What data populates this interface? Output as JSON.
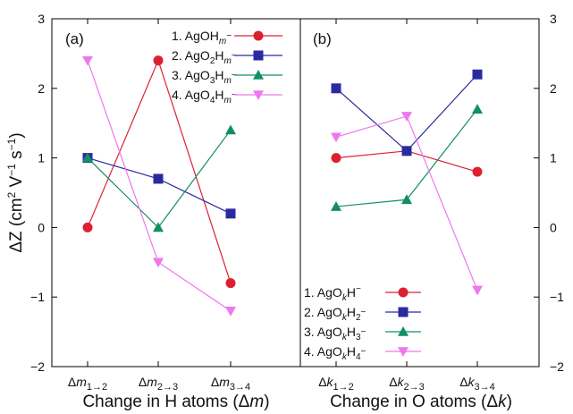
{
  "chart_data": [
    {
      "type": "line",
      "panel_label": "(a)",
      "categories": [
        "Δm1→2",
        "Δm2→3",
        "Δm3→4"
      ],
      "category_parts": [
        {
          "main": "Δm",
          "sub": "1→2"
        },
        {
          "main": "Δm",
          "sub": "2→3"
        },
        {
          "main": "Δm",
          "sub": "3→4"
        }
      ],
      "xlabel": "Change in H atoms (Δm)",
      "ylabel": "ΔZ (cm² V⁻¹ s⁻¹)",
      "ylim": [
        -2,
        3
      ],
      "yticks": [
        -2,
        -1,
        0,
        1,
        2,
        3
      ],
      "legend_position": "top-right",
      "series": [
        {
          "name": "1. AgOHm−",
          "label_parts": [
            "1. AgOH",
            "m",
            "−"
          ],
          "color": "#dd2030",
          "marker": "circle",
          "values": [
            0,
            2.4,
            -0.8
          ]
        },
        {
          "name": "2. AgO2Hm−",
          "label_parts": [
            "2. AgO",
            "2",
            "H",
            "m",
            "−"
          ],
          "color": "#2a2aa0",
          "marker": "square",
          "values": [
            1.0,
            0.7,
            0.2
          ]
        },
        {
          "name": "3. AgO3Hm−",
          "label_parts": [
            "3. AgO",
            "3",
            "H",
            "m",
            "−"
          ],
          "color": "#119060",
          "marker": "triangle-up",
          "values": [
            1.0,
            0.0,
            1.4
          ]
        },
        {
          "name": "4. AgO4Hm−",
          "label_parts": [
            "4. AgO",
            "4",
            "H",
            "m",
            "−"
          ],
          "color": "#ee77ee",
          "marker": "triangle-down",
          "values": [
            2.4,
            -0.5,
            -1.2
          ]
        }
      ]
    },
    {
      "type": "line",
      "panel_label": "(b)",
      "categories": [
        "Δk1→2",
        "Δk2→3",
        "Δk3→4"
      ],
      "category_parts": [
        {
          "main": "Δk",
          "sub": "1→2"
        },
        {
          "main": "Δk",
          "sub": "2→3"
        },
        {
          "main": "Δk",
          "sub": "3→4"
        }
      ],
      "xlabel": "Change in O atoms (Δk)",
      "ylim": [
        -2,
        3
      ],
      "yticks": [
        -2,
        -1,
        0,
        1,
        2,
        3
      ],
      "legend_position": "bottom-left",
      "series": [
        {
          "name": "1. AgOkH−",
          "label_parts": [
            "1. AgO",
            "k",
            "H",
            "−"
          ],
          "color": "#dd2030",
          "marker": "circle",
          "values": [
            1.0,
            1.1,
            0.8
          ]
        },
        {
          "name": "2. AgOkH2−",
          "label_parts": [
            "2. AgO",
            "k",
            "H",
            "2",
            "−"
          ],
          "color": "#2a2aa0",
          "marker": "square",
          "values": [
            2.0,
            1.1,
            2.2
          ]
        },
        {
          "name": "3. AgOkH3−",
          "label_parts": [
            "3. AgO",
            "k",
            "H",
            "3",
            "−"
          ],
          "color": "#119060",
          "marker": "triangle-up",
          "values": [
            0.3,
            0.4,
            1.7
          ]
        },
        {
          "name": "4. AgOkH4−",
          "label_parts": [
            "4. AgO",
            "k",
            "H",
            "4",
            "−"
          ],
          "color": "#ee77ee",
          "marker": "triangle-down",
          "values": [
            1.3,
            1.6,
            -0.9
          ]
        }
      ]
    }
  ]
}
